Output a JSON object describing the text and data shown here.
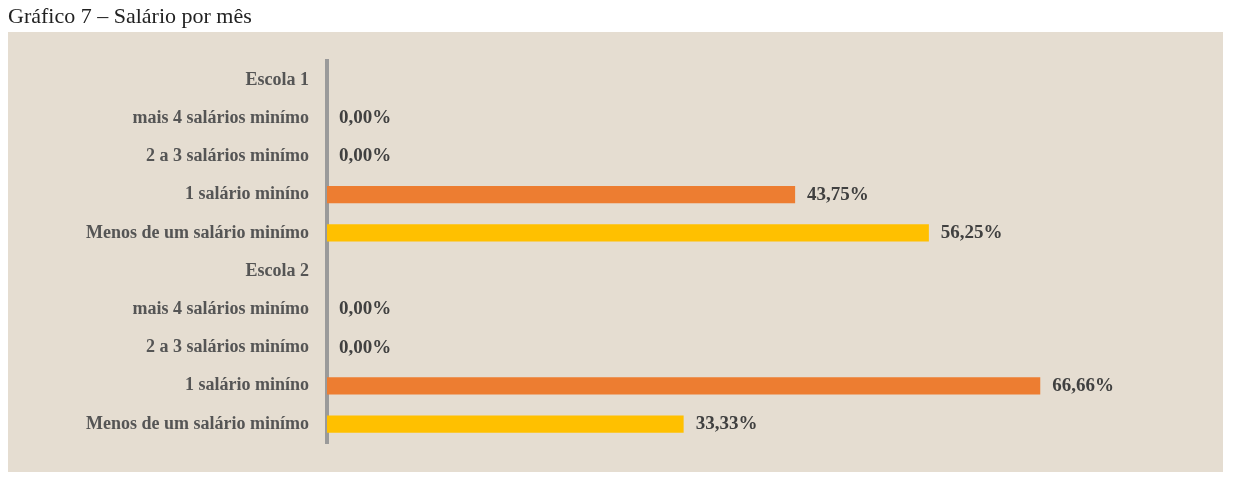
{
  "chart_data": {
    "type": "bar",
    "orientation": "horizontal",
    "title": "Gráfico 7 – Salário por mês",
    "categories": [
      "Escola 1",
      "mais 4 salários minímo",
      "2 a 3 salários minímo",
      "1 salário miníno",
      "Menos de um salário minímo",
      "Escola 2",
      "mais 4 salários minímo",
      "2 a 3 salários minímo",
      "1 salário miníno",
      "Menos de um salário minímo"
    ],
    "values": [
      null,
      0,
      0,
      43.75,
      56.25,
      null,
      0,
      0,
      66.66,
      33.33
    ],
    "colors": [
      "#5b9bd5",
      "#5b9bd5",
      "#5b9bd5",
      "#ed7d31",
      "#ffc000",
      "#5b9bd5",
      "#5b9bd5",
      "#5b9bd5",
      "#ed7d31",
      "#ffc000"
    ],
    "value_labels": [
      null,
      "0,00%",
      "0,00%",
      "43,75%",
      "56,25%",
      null,
      "0,00%",
      "0,00%",
      "66,66%",
      "33,33%"
    ],
    "grid": false,
    "legend": false
  }
}
